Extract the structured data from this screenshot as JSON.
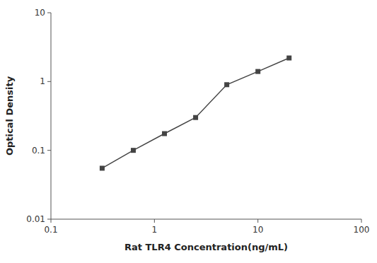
{
  "chart_data": {
    "type": "line",
    "x": [
      0.3125,
      0.625,
      1.25,
      2.5,
      5.0,
      10.0,
      20.0
    ],
    "values": [
      0.055,
      0.1,
      0.175,
      0.3,
      0.9,
      1.4,
      2.2
    ],
    "xlabel": "Rat TLR4 Concentration(ng/mL)",
    "ylabel": "Optical Density",
    "xlim": [
      0.1,
      100
    ],
    "ylim": [
      0.01,
      10
    ],
    "xticks": [
      0.1,
      1,
      10,
      100
    ],
    "yticks": [
      0.01,
      0.1,
      1,
      10
    ],
    "log": true,
    "color": "#444444",
    "marker": "square"
  }
}
